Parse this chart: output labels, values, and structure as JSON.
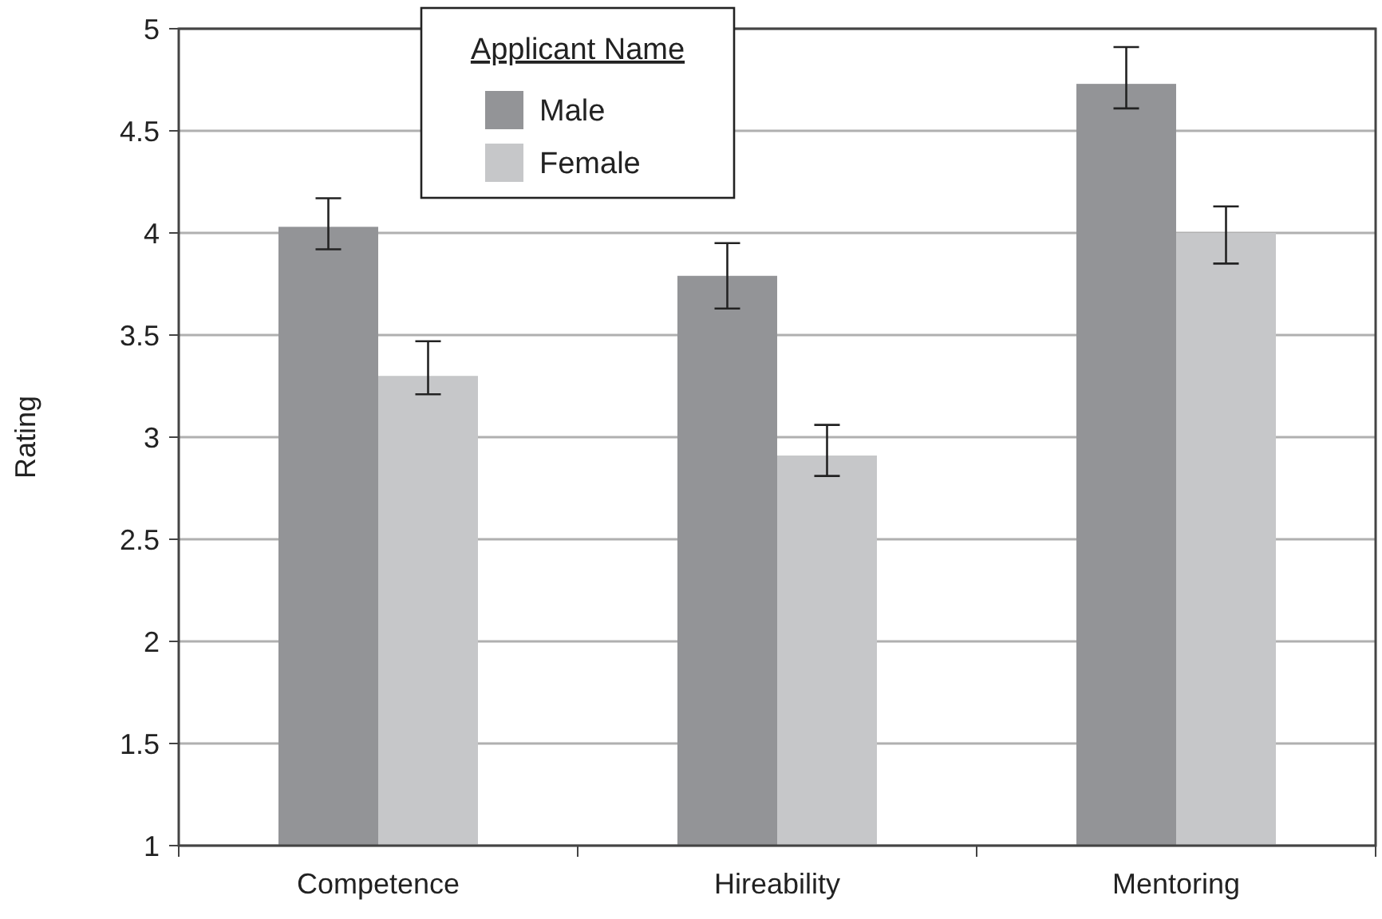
{
  "chart_data": {
    "type": "bar",
    "ylabel": "Rating",
    "legend_title": "Applicant Name",
    "categories": [
      "Competence",
      "Hireability",
      "Mentoring"
    ],
    "series": [
      {
        "name": "Male",
        "color": "#939497",
        "values": [
          4.03,
          3.79,
          4.73
        ],
        "errors": [
          [
            3.92,
            4.17
          ],
          [
            3.63,
            3.95
          ],
          [
            4.61,
            4.91
          ]
        ]
      },
      {
        "name": "Female",
        "color": "#c6c7c9",
        "values": [
          3.3,
          2.91,
          4.0
        ],
        "errors": [
          [
            3.21,
            3.47
          ],
          [
            2.81,
            3.06
          ],
          [
            3.85,
            4.13
          ]
        ]
      }
    ],
    "ylim": [
      1,
      5
    ],
    "yticks": [
      1,
      1.5,
      2,
      2.5,
      3,
      3.5,
      4,
      4.5,
      5
    ],
    "grid": "y",
    "legend": "top left"
  }
}
